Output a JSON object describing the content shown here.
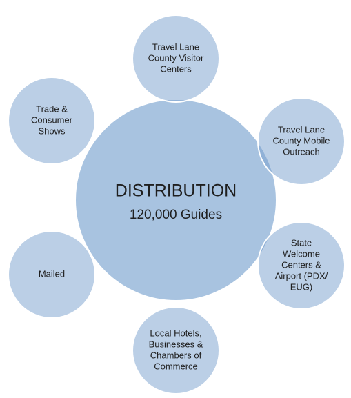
{
  "center": {
    "title": "DISTRIBUTION",
    "subtitle": "120,000 Guides"
  },
  "nodes": [
    {
      "lines": [
        "Travel Lane",
        "County Visitor",
        "Centers"
      ]
    },
    {
      "lines": [
        "Travel Lane",
        "County Mobile",
        "Outreach"
      ]
    },
    {
      "lines": [
        "State",
        "Welcome",
        "Centers &",
        "Airport (PDX/",
        "EUG)"
      ]
    },
    {
      "lines": [
        "Local Hotels,",
        "Businesses &",
        "Chambers of",
        "Commerce"
      ]
    },
    {
      "lines": [
        "Mailed"
      ]
    },
    {
      "lines": [
        "Trade &",
        "Consumer",
        "Shows"
      ]
    }
  ]
}
